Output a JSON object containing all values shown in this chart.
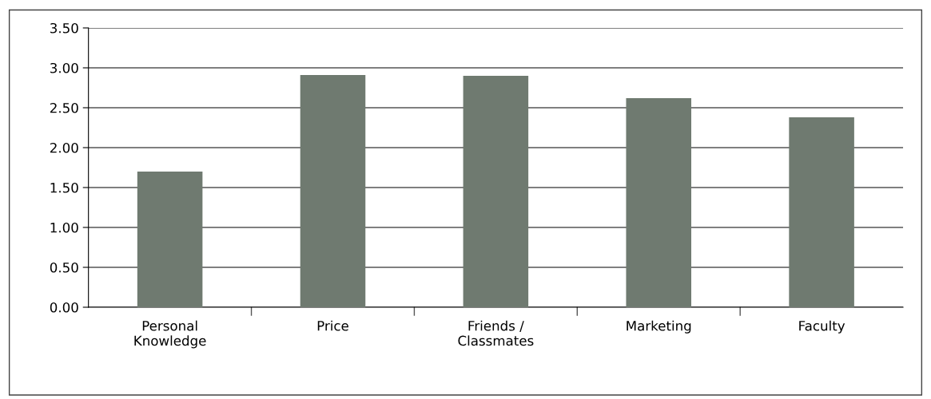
{
  "chart_data": {
    "type": "bar",
    "categories": [
      "Personal\nKnowledge",
      "Price",
      "Friends /\nClassmates",
      "Marketing",
      "Faculty"
    ],
    "values": [
      1.7,
      2.91,
      2.9,
      2.62,
      2.38
    ],
    "color": "#6f7a70",
    "ylim": [
      0,
      3.5
    ],
    "yticks": [
      {
        "value": 0,
        "label": "0.00"
      },
      {
        "value": 0.5,
        "label": "0.50"
      },
      {
        "value": 1,
        "label": "1.00"
      },
      {
        "value": 1.5,
        "label": "1.50"
      },
      {
        "value": 2,
        "label": "2.00"
      },
      {
        "value": 2.5,
        "label": "2.50"
      },
      {
        "value": 3,
        "label": "3.00"
      },
      {
        "value": 3.5,
        "label": "3.50"
      }
    ],
    "grid": "y",
    "legend": false
  }
}
